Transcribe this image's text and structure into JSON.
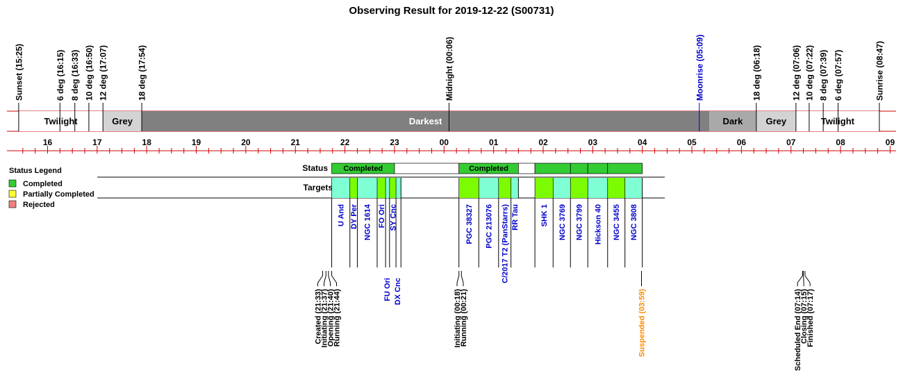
{
  "chart_data": {
    "type": "timeline",
    "title": "Observing Result for 2019-12-22 (S00731)",
    "axis": {
      "hour_start": 15.4,
      "hour_end": 33.2,
      "tick_labels": [
        {
          "h": 16,
          "label": "16"
        },
        {
          "h": 17,
          "label": "17"
        },
        {
          "h": 18,
          "label": "18"
        },
        {
          "h": 19,
          "label": "19"
        },
        {
          "h": 20,
          "label": "20"
        },
        {
          "h": 21,
          "label": "21"
        },
        {
          "h": 22,
          "label": "22"
        },
        {
          "h": 23,
          "label": "23"
        },
        {
          "h": 24,
          "label": "00"
        },
        {
          "h": 25,
          "label": "01"
        },
        {
          "h": 26,
          "label": "02"
        },
        {
          "h": 27,
          "label": "03"
        },
        {
          "h": 28,
          "label": "04"
        },
        {
          "h": 29,
          "label": "05"
        },
        {
          "h": 30,
          "label": "06"
        },
        {
          "h": 31,
          "label": "07"
        },
        {
          "h": 32,
          "label": "08"
        },
        {
          "h": 33,
          "label": "09"
        }
      ]
    },
    "sky_events": [
      {
        "h": 15.417,
        "label": "Sunset (15:25)",
        "color": "#000000"
      },
      {
        "h": 16.25,
        "label": "6 deg (16:15)",
        "color": "#000000"
      },
      {
        "h": 16.55,
        "label": "8 deg (16:33)",
        "color": "#000000"
      },
      {
        "h": 16.833,
        "label": "10 deg (16:50)",
        "color": "#000000"
      },
      {
        "h": 17.117,
        "label": "12 deg (17:07)",
        "color": "#000000"
      },
      {
        "h": 17.9,
        "label": "18 deg (17:54)",
        "color": "#000000"
      },
      {
        "h": 24.1,
        "label": "Midnight (00:06)",
        "color": "#000000"
      },
      {
        "h": 29.15,
        "label": "Moonrise (05:09)",
        "color": "#0000cc"
      },
      {
        "h": 30.3,
        "label": "18 deg (06:18)",
        "color": "#000000"
      },
      {
        "h": 31.1,
        "label": "12 deg (07:06)",
        "color": "#000000"
      },
      {
        "h": 31.367,
        "label": "10 deg (07:22)",
        "color": "#000000"
      },
      {
        "h": 31.65,
        "label": "8 deg (07:39)",
        "color": "#000000"
      },
      {
        "h": 31.95,
        "label": "6 deg (07:57)",
        "color": "#000000"
      },
      {
        "h": 32.783,
        "label": "Sunrise (08:47)",
        "color": "#000000"
      }
    ],
    "sky_bands": [
      {
        "start": 15.417,
        "end": 17.117,
        "label": "Twilight",
        "color": "#ffffff"
      },
      {
        "start": 17.117,
        "end": 17.9,
        "label": "Grey",
        "color": "#d3d3d3"
      },
      {
        "start": 17.9,
        "end": 29.35,
        "label": "Darkest",
        "color": "#808080"
      },
      {
        "start": 29.35,
        "end": 30.3,
        "label": "Dark",
        "color": "#a9a9a9"
      },
      {
        "start": 30.3,
        "end": 31.1,
        "label": "Grey",
        "color": "#d3d3d3"
      },
      {
        "start": 31.1,
        "end": 32.783,
        "label": "Twilight",
        "color": "#ffffff"
      }
    ],
    "legend": {
      "title": "Status Legend",
      "items": [
        {
          "label": "Completed",
          "color": "#33cc33"
        },
        {
          "label": "Partially Completed",
          "color": "#ffff33"
        },
        {
          "label": "Rejected",
          "color": "#f08080"
        }
      ]
    },
    "rows": {
      "status_label": "Status",
      "targets_label": "Targets"
    },
    "status_segments": [
      {
        "start": 21.733,
        "end": 23.0,
        "label": "Completed",
        "color": "#33cc33"
      },
      {
        "start": 23.0,
        "end": 24.3,
        "label": "",
        "color": "#ffffff"
      },
      {
        "start": 24.3,
        "end": 25.5,
        "label": "Completed",
        "color": "#33cc33"
      },
      {
        "start": 25.5,
        "end": 25.833,
        "label": "",
        "color": "#ffffff"
      },
      {
        "start": 25.833,
        "end": 26.55,
        "label": "",
        "color": "#33cc33"
      },
      {
        "start": 26.55,
        "end": 26.9,
        "label": "",
        "color": "#33cc33"
      },
      {
        "start": 26.9,
        "end": 27.3,
        "label": "",
        "color": "#33cc33"
      },
      {
        "start": 27.3,
        "end": 28.0,
        "label": "",
        "color": "#33cc33"
      }
    ],
    "targets": [
      {
        "start": 21.733,
        "end": 22.1,
        "name": "U And",
        "color": "#7fffd4"
      },
      {
        "start": 22.1,
        "end": 22.25,
        "name": "DY Per",
        "color": "#7cfc00"
      },
      {
        "start": 22.25,
        "end": 22.65,
        "name": "NGC 1614",
        "color": "#7fffd4"
      },
      {
        "start": 22.65,
        "end": 22.82,
        "name": "FO Ori",
        "color": "#7cfc00"
      },
      {
        "start": 22.82,
        "end": 22.9,
        "name": "FU Ori",
        "color": "#7fffd4"
      },
      {
        "start": 22.9,
        "end": 23.03,
        "name": "SY Cnc",
        "color": "#7cfc00"
      },
      {
        "start": 23.03,
        "end": 23.13,
        "name": "DX Cnc",
        "color": "#7fffd4"
      },
      {
        "start": 24.3,
        "end": 24.7,
        "name": "PGC 38327",
        "color": "#7cfc00"
      },
      {
        "start": 24.7,
        "end": 25.1,
        "name": "PGC 213076",
        "color": "#7fffd4"
      },
      {
        "start": 25.1,
        "end": 25.35,
        "name": "C/2017 T2 (PanStarrs)",
        "color": "#7cfc00"
      },
      {
        "start": 25.35,
        "end": 25.5,
        "name": "RR Tau",
        "color": "#7fffd4"
      },
      {
        "start": 25.833,
        "end": 26.2,
        "name": "SHK 1",
        "color": "#7cfc00"
      },
      {
        "start": 26.2,
        "end": 26.55,
        "name": "NGC 3769",
        "color": "#7fffd4"
      },
      {
        "start": 26.55,
        "end": 26.9,
        "name": "NGC 3799",
        "color": "#7cfc00"
      },
      {
        "start": 26.9,
        "end": 27.3,
        "name": "Hickson 40",
        "color": "#7fffd4"
      },
      {
        "start": 27.3,
        "end": 27.65,
        "name": "NGC 3455",
        "color": "#7cfc00"
      },
      {
        "start": 27.65,
        "end": 28.0,
        "name": "NGC 3808",
        "color": "#7fffd4"
      }
    ],
    "events": [
      {
        "h": 21.55,
        "label": "Created (21:33)",
        "color": "#000000"
      },
      {
        "h": 21.617,
        "label": "Initiating (21:37)",
        "color": "#000000"
      },
      {
        "h": 21.667,
        "label": "Opening (21:40)",
        "color": "#000000"
      },
      {
        "h": 21.733,
        "label": "Running (21:44)",
        "color": "#000000"
      },
      {
        "h": 24.3,
        "label": "Initiating (00:18)",
        "color": "#000000"
      },
      {
        "h": 24.35,
        "label": "Running (00:21)",
        "color": "#000000"
      },
      {
        "h": 27.983,
        "label": "Suspended (03:59)",
        "color": "#ff8c00"
      },
      {
        "h": 31.233,
        "label": "Scheduled End (07:14)",
        "color": "#000000"
      },
      {
        "h": 31.25,
        "label": "Closing (07:15)",
        "color": "#000000"
      },
      {
        "h": 31.283,
        "label": "Finished (07:17)",
        "color": "#000000"
      }
    ]
  }
}
